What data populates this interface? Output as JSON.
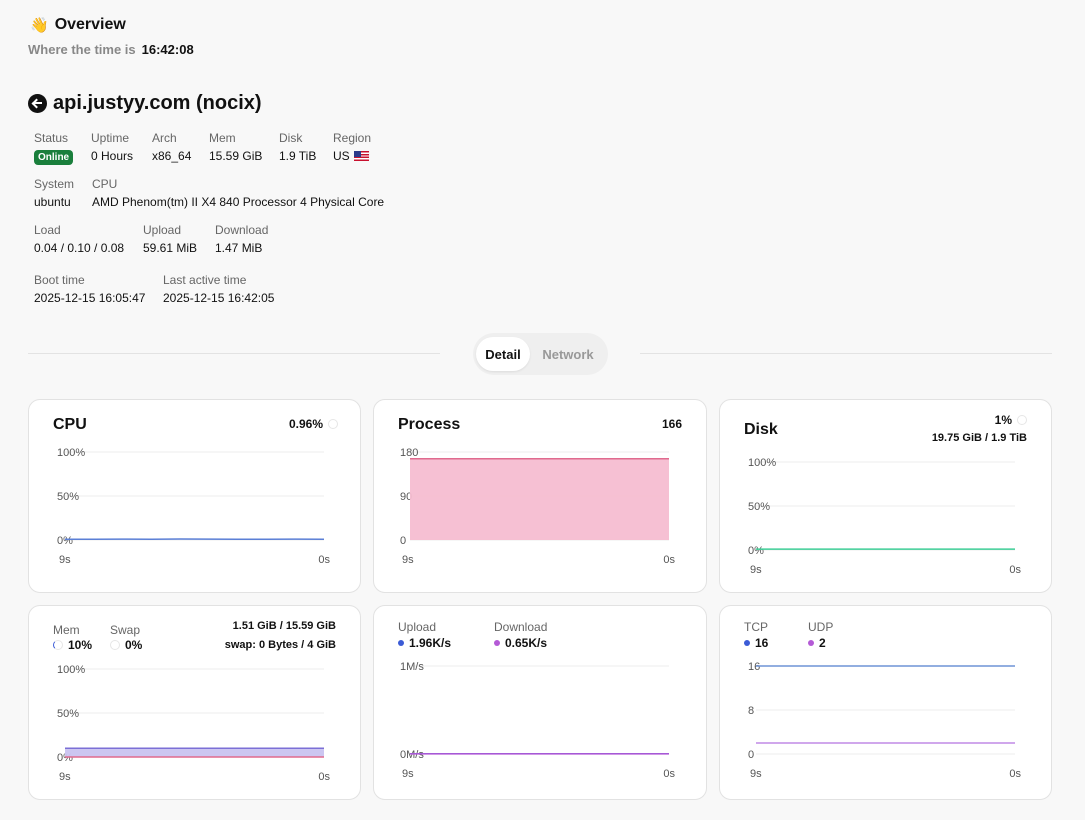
{
  "header": {
    "title": "Overview",
    "time_label": "Where the time is",
    "time_value": "16:42:08"
  },
  "server": {
    "name": "api.justyy.com (nocix)",
    "status_label": "Status",
    "status_value": "Online",
    "uptime_label": "Uptime",
    "uptime_value": "0 Hours",
    "arch_label": "Arch",
    "arch_value": "x86_64",
    "mem_label": "Mem",
    "mem_value": "15.59 GiB",
    "disk_label": "Disk",
    "disk_value": "1.9 TiB",
    "region_label": "Region",
    "region_value": "US",
    "system_label": "System",
    "system_value": "ubuntu",
    "cpu_label": "CPU",
    "cpu_value": "AMD Phenom(tm) II X4 840 Processor 4 Physical Core",
    "load_label": "Load",
    "load_value": "0.04 / 0.10 / 0.08",
    "upload_label": "Upload",
    "upload_value": "59.61 MiB",
    "download_label": "Download",
    "download_value": "1.47 MiB",
    "boot_label": "Boot time",
    "boot_value": "2025-12-15 16:05:47",
    "active_label": "Last active time",
    "active_value": "2025-12-15 16:42:05"
  },
  "tabs": [
    {
      "label": "Detail",
      "active": true
    },
    {
      "label": "Network",
      "active": false
    }
  ],
  "cards": {
    "cpu": {
      "title": "CPU",
      "stat": "0.96%"
    },
    "process": {
      "title": "Process",
      "stat": "166"
    },
    "disk": {
      "title": "Disk",
      "stat": "1%",
      "sub": "19.75 GiB / 1.9 TiB"
    },
    "mem": {
      "mem_label": "Mem",
      "mem_value": "10%",
      "swap_label": "Swap",
      "swap_value": "0%",
      "mem_detail": "1.51 GiB / 15.59 GiB",
      "swap_detail": "swap: 0 Bytes / 4 GiB"
    },
    "network": {
      "upload_label": "Upload",
      "upload_value": "1.96K/s",
      "download_label": "Download",
      "download_value": "0.65K/s"
    },
    "conn": {
      "tcp_label": "TCP",
      "tcp_value": "16",
      "udp_label": "UDP",
      "udp_value": "2"
    }
  },
  "colors": {
    "cpu_line": "#5b7fd6",
    "process_fill": "#f5bdd1",
    "process_line": "#e06a8e",
    "disk_line": "#3ecf97",
    "mem_fill": "#c9c3f0",
    "mem_line": "#7b6fd6",
    "swap_line": "#e06a8e",
    "upload": "#3b5bd6",
    "download": "#b45ad6",
    "tcp": "#6f93d6",
    "udp": "#c08ae6"
  },
  "chart_data": [
    {
      "name": "cpu",
      "type": "line",
      "x_ticks": [
        "9s",
        "0s"
      ],
      "y_ticks": [
        "100%",
        "50%",
        "0%"
      ],
      "ylim": [
        0,
        100
      ],
      "series": [
        {
          "values": [
            0.9,
            0.9,
            1.0,
            0.9,
            1.1,
            1.0,
            0.9,
            0.9,
            1.0,
            0.96
          ]
        }
      ]
    },
    {
      "name": "process",
      "type": "area",
      "x_ticks": [
        "9s",
        "0s"
      ],
      "y_ticks": [
        "180",
        "90",
        "0"
      ],
      "ylim": [
        0,
        180
      ],
      "series": [
        {
          "values": [
            166,
            166,
            166,
            166,
            166,
            166,
            166,
            166,
            166,
            166
          ]
        }
      ]
    },
    {
      "name": "disk",
      "type": "line",
      "x_ticks": [
        "9s",
        "0s"
      ],
      "y_ticks": [
        "100%",
        "50%",
        "0%"
      ],
      "ylim": [
        0,
        100
      ],
      "series": [
        {
          "values": [
            1,
            1,
            1,
            1,
            1,
            1,
            1,
            1,
            1,
            1
          ]
        }
      ]
    },
    {
      "name": "mem",
      "type": "area",
      "x_ticks": [
        "9s",
        "0s"
      ],
      "y_ticks": [
        "100%",
        "50%",
        "0%"
      ],
      "ylim": [
        0,
        100
      ],
      "series": [
        {
          "name": "Mem",
          "values": [
            10,
            10,
            10,
            10,
            10,
            10,
            10,
            10,
            10,
            10
          ]
        },
        {
          "name": "Swap",
          "values": [
            0,
            0,
            0,
            0,
            0,
            0,
            0,
            0,
            0,
            0
          ]
        }
      ]
    },
    {
      "name": "network",
      "type": "line",
      "x_ticks": [
        "9s",
        "0s"
      ],
      "y_ticks": [
        "1M/s",
        "0M/s"
      ],
      "ylim": [
        0,
        1000
      ],
      "series": [
        {
          "name": "Upload",
          "values": [
            1.9,
            2.0,
            1.9,
            2.0,
            1.9,
            2.0,
            1.9,
            2.0,
            1.9,
            1.96
          ]
        },
        {
          "name": "Download",
          "values": [
            0.6,
            0.7,
            0.6,
            0.7,
            0.6,
            0.7,
            0.6,
            0.7,
            0.6,
            0.65
          ]
        }
      ]
    },
    {
      "name": "conn",
      "type": "line",
      "x_ticks": [
        "9s",
        "0s"
      ],
      "y_ticks": [
        "16",
        "8",
        "0"
      ],
      "ylim": [
        0,
        16
      ],
      "series": [
        {
          "name": "TCP",
          "values": [
            16,
            16,
            16,
            16,
            16,
            16,
            16,
            16,
            16,
            16
          ]
        },
        {
          "name": "UDP",
          "values": [
            2,
            2,
            2,
            2,
            2,
            2,
            2,
            2,
            2,
            2
          ]
        }
      ]
    }
  ]
}
